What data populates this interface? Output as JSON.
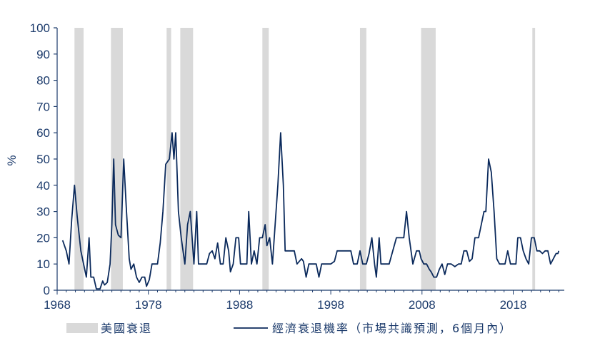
{
  "chart_data": {
    "type": "line",
    "title": "",
    "xlabel": "",
    "ylabel": "%",
    "ylim": [
      0,
      100
    ],
    "xlim": [
      1968,
      2023.6
    ],
    "yticks": [
      0,
      10,
      20,
      30,
      40,
      50,
      60,
      70,
      80,
      90,
      100
    ],
    "xticks": [
      1968,
      1978,
      1988,
      1998,
      2008,
      2018
    ],
    "grid": false,
    "legend_position": "bottom",
    "colors": {
      "line": "#0b2a5c",
      "recession": "#d9d9d9",
      "axis": "#1b3a6b"
    },
    "recessions": {
      "name": "美國衰退",
      "periods": [
        [
          1969.9,
          1970.9
        ],
        [
          1973.9,
          1975.2
        ],
        [
          1980.0,
          1980.5
        ],
        [
          1981.5,
          1982.9
        ],
        [
          1990.5,
          1991.2
        ],
        [
          2001.2,
          2001.9
        ],
        [
          2007.9,
          2009.5
        ],
        [
          2020.1,
          2020.4
        ]
      ]
    },
    "series": [
      {
        "name": "經濟衰退機率（市場共識預測，6個月內）",
        "points": [
          [
            1968.6,
            19
          ],
          [
            1969.0,
            15
          ],
          [
            1969.3,
            10
          ],
          [
            1969.6,
            27
          ],
          [
            1969.9,
            40
          ],
          [
            1970.2,
            28
          ],
          [
            1970.6,
            15
          ],
          [
            1970.9,
            10
          ],
          [
            1971.2,
            5
          ],
          [
            1971.5,
            20
          ],
          [
            1971.7,
            5
          ],
          [
            1972.0,
            5
          ],
          [
            1972.3,
            0.5
          ],
          [
            1972.7,
            0.5
          ],
          [
            1973.0,
            3.5
          ],
          [
            1973.2,
            2
          ],
          [
            1973.5,
            3
          ],
          [
            1973.8,
            10
          ],
          [
            1974.0,
            25
          ],
          [
            1974.2,
            50
          ],
          [
            1974.4,
            25
          ],
          [
            1974.7,
            21
          ],
          [
            1975.0,
            20
          ],
          [
            1975.3,
            50
          ],
          [
            1975.6,
            30
          ],
          [
            1975.9,
            12
          ],
          [
            1976.1,
            8
          ],
          [
            1976.4,
            10
          ],
          [
            1976.7,
            5
          ],
          [
            1977.0,
            3
          ],
          [
            1977.3,
            5
          ],
          [
            1977.6,
            5
          ],
          [
            1977.8,
            1.5
          ],
          [
            1978.1,
            4
          ],
          [
            1978.4,
            10
          ],
          [
            1978.7,
            10
          ],
          [
            1979.0,
            10
          ],
          [
            1979.3,
            18
          ],
          [
            1979.6,
            30
          ],
          [
            1979.9,
            48
          ],
          [
            1980.3,
            50
          ],
          [
            1980.6,
            60
          ],
          [
            1980.8,
            50
          ],
          [
            1981.0,
            60
          ],
          [
            1981.3,
            30
          ],
          [
            1981.6,
            20
          ],
          [
            1982.0,
            10
          ],
          [
            1982.3,
            25
          ],
          [
            1982.6,
            30
          ],
          [
            1983.0,
            10
          ],
          [
            1983.3,
            30
          ],
          [
            1983.5,
            10
          ],
          [
            1984.0,
            10
          ],
          [
            1984.4,
            10
          ],
          [
            1984.7,
            14
          ],
          [
            1985.0,
            15
          ],
          [
            1985.3,
            12
          ],
          [
            1985.6,
            18
          ],
          [
            1985.9,
            10
          ],
          [
            1986.2,
            10
          ],
          [
            1986.5,
            20
          ],
          [
            1986.8,
            15
          ],
          [
            1987.0,
            7
          ],
          [
            1987.3,
            10
          ],
          [
            1987.6,
            20
          ],
          [
            1987.9,
            20
          ],
          [
            1988.1,
            10
          ],
          [
            1988.5,
            10
          ],
          [
            1988.8,
            10
          ],
          [
            1989.0,
            30
          ],
          [
            1989.3,
            10
          ],
          [
            1989.6,
            15
          ],
          [
            1989.9,
            10
          ],
          [
            1990.2,
            20
          ],
          [
            1990.5,
            20
          ],
          [
            1990.8,
            25
          ],
          [
            1991.0,
            17
          ],
          [
            1991.3,
            20
          ],
          [
            1991.6,
            10
          ],
          [
            1991.9,
            25
          ],
          [
            1992.2,
            40
          ],
          [
            1992.5,
            60
          ],
          [
            1992.8,
            40
          ],
          [
            1993.0,
            15
          ],
          [
            1993.5,
            15
          ],
          [
            1994.0,
            15
          ],
          [
            1994.3,
            10
          ],
          [
            1994.8,
            12
          ],
          [
            1995.0,
            11
          ],
          [
            1995.3,
            5
          ],
          [
            1995.6,
            10
          ],
          [
            1996.0,
            10
          ],
          [
            1996.4,
            10
          ],
          [
            1996.7,
            5
          ],
          [
            1997.0,
            10
          ],
          [
            1997.5,
            10
          ],
          [
            1998.0,
            10
          ],
          [
            1998.4,
            11
          ],
          [
            1998.7,
            15
          ],
          [
            1999.2,
            15
          ],
          [
            1999.7,
            15
          ],
          [
            2000.2,
            15
          ],
          [
            2000.5,
            10
          ],
          [
            2000.9,
            10
          ],
          [
            2001.2,
            15
          ],
          [
            2001.5,
            10
          ],
          [
            2001.9,
            10
          ],
          [
            2002.2,
            14
          ],
          [
            2002.5,
            20
          ],
          [
            2002.8,
            10
          ],
          [
            2003.0,
            5
          ],
          [
            2003.3,
            20
          ],
          [
            2003.5,
            10
          ],
          [
            2004.0,
            10
          ],
          [
            2004.4,
            10
          ],
          [
            2004.8,
            15
          ],
          [
            2005.2,
            20
          ],
          [
            2005.6,
            20
          ],
          [
            2006.0,
            20
          ],
          [
            2006.3,
            30
          ],
          [
            2006.6,
            20
          ],
          [
            2007.0,
            10
          ],
          [
            2007.4,
            15
          ],
          [
            2007.7,
            15
          ],
          [
            2007.9,
            12
          ],
          [
            2008.2,
            10
          ],
          [
            2008.5,
            10
          ],
          [
            2008.8,
            8
          ],
          [
            2009.0,
            7
          ],
          [
            2009.3,
            5
          ],
          [
            2009.6,
            5
          ],
          [
            2009.9,
            8
          ],
          [
            2010.2,
            10
          ],
          [
            2010.5,
            6
          ],
          [
            2010.8,
            10
          ],
          [
            2011.2,
            10
          ],
          [
            2011.6,
            9
          ],
          [
            2012.0,
            10
          ],
          [
            2012.3,
            10
          ],
          [
            2012.6,
            15
          ],
          [
            2012.9,
            15
          ],
          [
            2013.2,
            11
          ],
          [
            2013.5,
            12
          ],
          [
            2013.8,
            20
          ],
          [
            2014.2,
            20
          ],
          [
            2014.5,
            25
          ],
          [
            2014.8,
            30
          ],
          [
            2015.0,
            30
          ],
          [
            2015.3,
            50
          ],
          [
            2015.6,
            45
          ],
          [
            2015.9,
            30
          ],
          [
            2016.2,
            12
          ],
          [
            2016.5,
            10
          ],
          [
            2016.8,
            10
          ],
          [
            2017.1,
            10
          ],
          [
            2017.4,
            15
          ],
          [
            2017.7,
            10
          ],
          [
            2018.0,
            10
          ],
          [
            2018.3,
            10
          ],
          [
            2018.5,
            20
          ],
          [
            2018.8,
            20
          ],
          [
            2019.1,
            15
          ],
          [
            2019.4,
            12
          ],
          [
            2019.7,
            10
          ],
          [
            2020.0,
            20
          ],
          [
            2020.3,
            20
          ],
          [
            2020.6,
            15
          ],
          [
            2020.9,
            15
          ],
          [
            2021.2,
            14
          ],
          [
            2021.5,
            15
          ],
          [
            2021.8,
            15
          ],
          [
            2022.1,
            10
          ],
          [
            2022.4,
            12
          ],
          [
            2022.7,
            14
          ],
          [
            2022.9,
            14
          ],
          [
            2023.0,
            15
          ]
        ]
      }
    ]
  }
}
